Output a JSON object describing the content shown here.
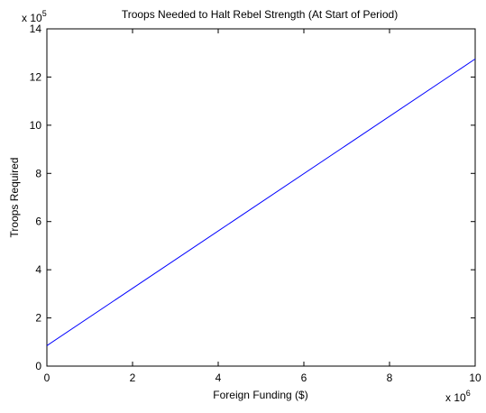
{
  "chart_data": {
    "type": "line",
    "title": "Troops Needed to Halt Rebel Strength (At Start of Period)",
    "xlabel": "Foreign Funding ($)",
    "ylabel": "Troops Required",
    "x_multiplier": {
      "base": "x 10",
      "exponent": "6"
    },
    "y_multiplier": {
      "base": "x 10",
      "exponent": "5"
    },
    "xlim": [
      0,
      10
    ],
    "ylim": [
      0,
      14
    ],
    "x_ticks": [
      "0",
      "2",
      "4",
      "6",
      "8",
      "10"
    ],
    "y_ticks": [
      "0",
      "2",
      "4",
      "6",
      "8",
      "10",
      "12",
      "14"
    ],
    "grid": false,
    "series": [
      {
        "x": [
          0,
          10
        ],
        "y": [
          0.85,
          12.75
        ],
        "color": "#0000ff"
      }
    ]
  }
}
